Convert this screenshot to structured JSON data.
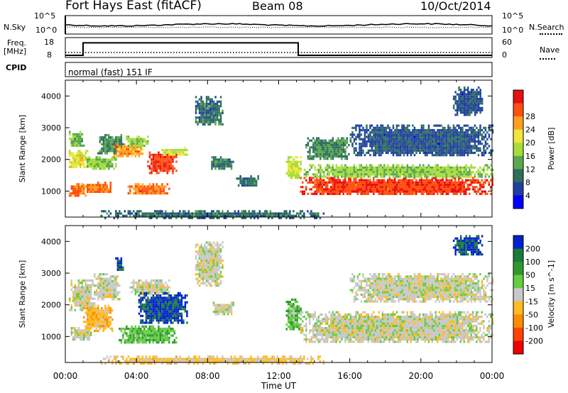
{
  "header": {
    "station": "Fort Hays East (fitACF)",
    "beam": "Beam 08",
    "date": "10/Oct/2014"
  },
  "top_panels": {
    "noise_left_label": "N.Sky",
    "noise_right_label": "N.Search",
    "noise_ticks": [
      "10^5",
      "10^0"
    ],
    "freq_label_line1": "Freq.",
    "freq_label_line2": "[MHz]",
    "freq_ticks": [
      "18",
      "8"
    ],
    "nave_label": "Nave",
    "nave_ticks": [
      "60",
      "0"
    ],
    "cpid_label": "CPID",
    "cpid_text": "normal (fast) 151 IF",
    "freq_steps": [
      [
        0,
        8
      ],
      [
        1.0,
        16
      ],
      [
        13.1,
        8
      ],
      [
        24,
        8
      ]
    ]
  },
  "chart_data": [
    {
      "type": "heatmap",
      "title": "",
      "xlabel": "Time UT",
      "ylabel": "Slant Range [km]",
      "xlim": [
        0,
        24
      ],
      "ylim": [
        180,
        4500
      ],
      "x_ticks": [
        "00:00",
        "04:00",
        "08:00",
        "12:00",
        "16:00",
        "20:00",
        "00:00"
      ],
      "y_ticks": [
        "1000",
        "2000",
        "3000",
        "4000"
      ],
      "colorbar": {
        "label": "Power [dB]",
        "ticks": [
          "4",
          "8",
          "12",
          "16",
          "20",
          "24",
          "28"
        ],
        "range": [
          0,
          30
        ],
        "colors": [
          "#0000ff",
          "#1f3fa0",
          "#2e6e5e",
          "#5aa84e",
          "#a8dc3c",
          "#f0e63c",
          "#ffa020",
          "#ff5010",
          "#e81010"
        ]
      },
      "regions": [
        {
          "t": [
            0.2,
            1.2
          ],
          "r": [
            880,
            1250
          ],
          "value": 24
        },
        {
          "t": [
            0.2,
            1.2
          ],
          "r": [
            1750,
            2300
          ],
          "value": 18
        },
        {
          "t": [
            0.2,
            1.0
          ],
          "r": [
            2400,
            2900
          ],
          "value": 12
        },
        {
          "t": [
            1.0,
            2.6
          ],
          "r": [
            950,
            1300
          ],
          "value": 24
        },
        {
          "t": [
            1.1,
            2.8
          ],
          "r": [
            1700,
            2100
          ],
          "value": 14
        },
        {
          "t": [
            1.8,
            3.2
          ],
          "r": [
            2200,
            2800
          ],
          "value": 10
        },
        {
          "t": [
            2.7,
            4.3
          ],
          "r": [
            2100,
            2500
          ],
          "value": 22
        },
        {
          "t": [
            3.4,
            4.6
          ],
          "r": [
            2400,
            2750
          ],
          "value": 14
        },
        {
          "t": [
            3.5,
            5.8
          ],
          "r": [
            900,
            1250
          ],
          "value": 24
        },
        {
          "t": [
            4.6,
            6.2
          ],
          "r": [
            1600,
            2250
          ],
          "value": 26
        },
        {
          "t": [
            5.4,
            6.8
          ],
          "r": [
            2150,
            2400
          ],
          "value": 16
        },
        {
          "t": [
            7.3,
            8.8
          ],
          "r": [
            3100,
            4000
          ],
          "value": 8
        },
        {
          "t": [
            8.2,
            9.4
          ],
          "r": [
            1700,
            2100
          ],
          "value": 8
        },
        {
          "t": [
            9.6,
            10.8
          ],
          "r": [
            1150,
            1500
          ],
          "value": 8
        },
        {
          "t": [
            12.4,
            13.2
          ],
          "r": [
            1400,
            2100
          ],
          "value": 16
        },
        {
          "t": [
            13.2,
            24.0
          ],
          "r": [
            900,
            1450
          ],
          "value": 26
        },
        {
          "t": [
            13.4,
            24.0
          ],
          "r": [
            1450,
            1850
          ],
          "value": 14
        },
        {
          "t": [
            13.5,
            16.0
          ],
          "r": [
            2000,
            2700
          ],
          "value": 10
        },
        {
          "t": [
            16.0,
            24.0
          ],
          "r": [
            2100,
            3100
          ],
          "value": 6
        },
        {
          "t": [
            21.8,
            23.4
          ],
          "r": [
            3400,
            4300
          ],
          "value": 6
        },
        {
          "t": [
            2.0,
            14.5
          ],
          "r": [
            180,
            400
          ],
          "value": 8
        }
      ]
    },
    {
      "type": "heatmap",
      "title": "",
      "xlabel": "Time UT",
      "ylabel": "Slant Range [km]",
      "xlim": [
        0,
        24
      ],
      "ylim": [
        180,
        4500
      ],
      "x_ticks": [
        "00:00",
        "04:00",
        "08:00",
        "12:00",
        "16:00",
        "20:00",
        "00:00"
      ],
      "y_ticks": [
        "1000",
        "2000",
        "3000",
        "4000"
      ],
      "colorbar": {
        "label": "Velocity [m s^-1]",
        "ticks": [
          "200",
          "100",
          "50",
          "15",
          "-15",
          "-50",
          "-100",
          "-200"
        ],
        "range": [
          -250,
          250
        ],
        "colors": [
          "#0022cc",
          "#1a7a3c",
          "#2e9a2e",
          "#66cc44",
          "#c8c8c8",
          "#ffbb22",
          "#ff8c00",
          "#ff4400",
          "#ee0000"
        ]
      },
      "regions": [
        {
          "t": [
            0.2,
            1.6
          ],
          "r": [
            1800,
            2800
          ],
          "value": 0
        },
        {
          "t": [
            0.3,
            1.4
          ],
          "r": [
            900,
            1300
          ],
          "value": 0
        },
        {
          "t": [
            1.6,
            3.0
          ],
          "r": [
            2200,
            3000
          ],
          "value": 0
        },
        {
          "t": [
            2.8,
            3.2
          ],
          "r": [
            3100,
            3500
          ],
          "value": 200
        },
        {
          "t": [
            3.6,
            5.8
          ],
          "r": [
            2300,
            2800
          ],
          "value": 0
        },
        {
          "t": [
            4.1,
            6.8
          ],
          "r": [
            1400,
            2400
          ],
          "value": 210
        },
        {
          "t": [
            3.0,
            6.2
          ],
          "r": [
            800,
            1350
          ],
          "value": 70
        },
        {
          "t": [
            1.0,
            2.6
          ],
          "r": [
            1200,
            2000
          ],
          "value": -60
        },
        {
          "t": [
            7.3,
            8.8
          ],
          "r": [
            2600,
            4000
          ],
          "value": 0
        },
        {
          "t": [
            8.3,
            9.4
          ],
          "r": [
            1700,
            2100
          ],
          "value": 0
        },
        {
          "t": [
            12.4,
            13.2
          ],
          "r": [
            1200,
            2200
          ],
          "value": 60
        },
        {
          "t": [
            13.2,
            24.0
          ],
          "r": [
            800,
            1800
          ],
          "value": 0
        },
        {
          "t": [
            16.0,
            24.0
          ],
          "r": [
            2100,
            3000
          ],
          "value": 0
        },
        {
          "t": [
            21.8,
            23.4
          ],
          "r": [
            3600,
            4200
          ],
          "value": 200
        },
        {
          "t": [
            2.0,
            14.5
          ],
          "r": [
            180,
            400
          ],
          "value": -40
        }
      ]
    }
  ]
}
